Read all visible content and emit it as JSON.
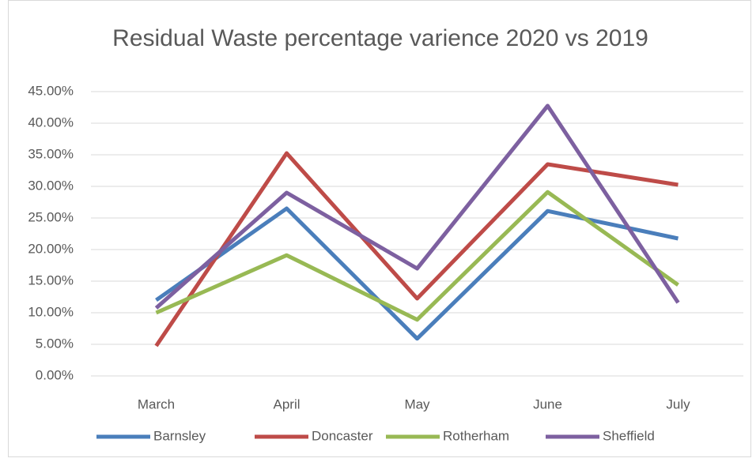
{
  "chart_data": {
    "type": "line",
    "title": "Residual Waste percentage varience 2020 vs 2019",
    "categories": [
      "March",
      "April",
      "May",
      "June",
      "July"
    ],
    "series": [
      {
        "name": "Barnsley",
        "color": "#4a7ebb",
        "values": [
          12,
          26.5,
          5.9,
          26.1,
          21.75
        ]
      },
      {
        "name": "Doncaster",
        "color": "#be4b48",
        "values": [
          4.75,
          35.25,
          12.25,
          33.5,
          30.25
        ]
      },
      {
        "name": "Rotherham",
        "color": "#98b954",
        "values": [
          10,
          19.1,
          8.9,
          29.1,
          14.4
        ]
      },
      {
        "name": "Sheffield",
        "color": "#7d60a0",
        "values": [
          10.75,
          29,
          17,
          42.75,
          11.6
        ]
      }
    ],
    "ylim": [
      0,
      45
    ],
    "yticks": [
      {
        "value": 0,
        "label": "0.00%"
      },
      {
        "value": 5,
        "label": "5.00%"
      },
      {
        "value": 10,
        "label": "10.00%"
      },
      {
        "value": 15,
        "label": "15.00%"
      },
      {
        "value": 20,
        "label": "20.00%"
      },
      {
        "value": 25,
        "label": "25.00%"
      },
      {
        "value": 30,
        "label": "30.00%"
      },
      {
        "value": 35,
        "label": "35.00%"
      },
      {
        "value": 40,
        "label": "40.00%"
      },
      {
        "value": 45,
        "label": "45.00%"
      }
    ],
    "grid": true,
    "legend": "bottom"
  }
}
